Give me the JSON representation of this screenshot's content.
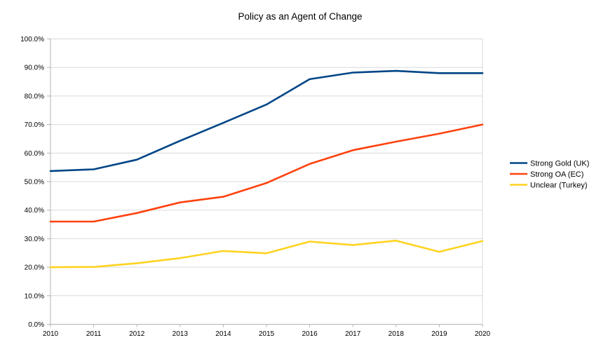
{
  "title": "Policy as an Agent of Change",
  "chart_data": {
    "type": "line",
    "title": "Policy as an Agent of Change",
    "x": [
      2010,
      2011,
      2012,
      2013,
      2014,
      2015,
      2016,
      2017,
      2018,
      2019,
      2020
    ],
    "x_labels": [
      "2010",
      "2011",
      "2012",
      "2013",
      "2014",
      "2015",
      "2016",
      "2017",
      "2018",
      "2019",
      "2020"
    ],
    "y_labels": [
      "100.0%",
      "90.0%",
      "80.0%",
      "70.0%",
      "60.0%",
      "50.0%",
      "40.0%",
      "30.0%",
      "20.0%",
      "10.0%",
      "0.0%"
    ],
    "ylim": [
      0,
      100
    ],
    "ytick_step": 10,
    "grid": "horizontal",
    "legend_position": "right",
    "background_color": "#ffffff",
    "gridline_color": "#d9d9d9",
    "axis_color": "#b3b3b3",
    "series": [
      {
        "name": "Strong Gold (UK)",
        "color": "#004586",
        "values": [
          53.7,
          54.3,
          57.7,
          64.3,
          70.6,
          77.0,
          85.9,
          88.2,
          88.8,
          88.0,
          88.0
        ]
      },
      {
        "name": "Strong OA (EC)",
        "color": "#ff420e",
        "values": [
          36.0,
          36.0,
          39.0,
          42.7,
          44.7,
          49.5,
          56.2,
          61.0,
          64.0,
          66.8,
          70.0
        ]
      },
      {
        "name": "Unclear (Turkey)",
        "color": "#ffd320",
        "values": [
          20.0,
          20.1,
          21.4,
          23.2,
          25.7,
          24.9,
          29.0,
          27.8,
          29.3,
          25.4,
          29.2
        ]
      }
    ]
  }
}
